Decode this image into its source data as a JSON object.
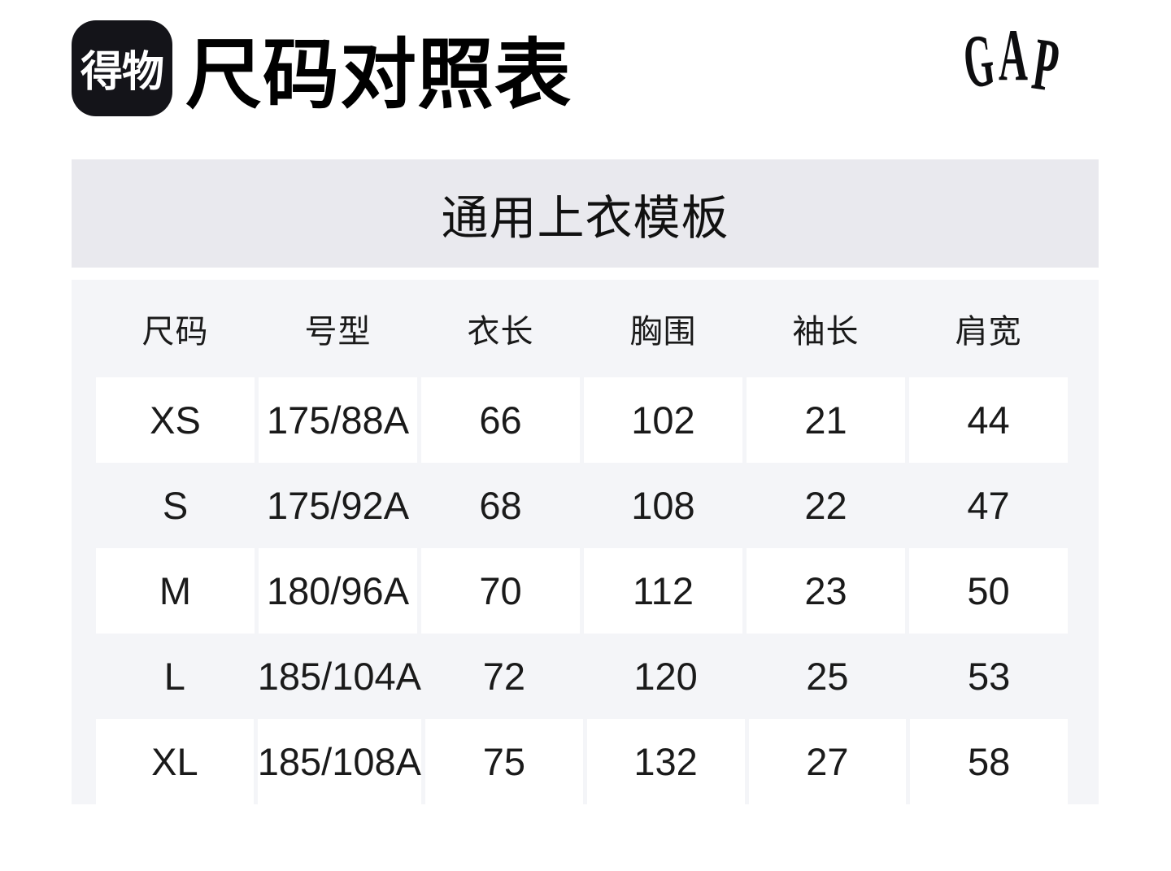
{
  "page": {
    "title": "尺码对照表"
  },
  "header": {
    "logo_text": "得物",
    "brand": "GAP",
    "brand_letters": [
      "G",
      "A",
      "P"
    ]
  },
  "banner": {
    "title": "通用上衣模板"
  },
  "table": {
    "columns": [
      "尺码",
      "号型",
      "衣长",
      "胸围",
      "袖长",
      "肩宽"
    ],
    "rows": [
      [
        "XS",
        "175/88A",
        "66",
        "102",
        "21",
        "44"
      ],
      [
        "S",
        "175/92A",
        "68",
        "108",
        "22",
        "47"
      ],
      [
        "M",
        "180/96A",
        "70",
        "112",
        "23",
        "50"
      ],
      [
        "L",
        "185/104A",
        "72",
        "120",
        "25",
        "53"
      ],
      [
        "XL",
        "185/108A",
        "75",
        "132",
        "27",
        "58"
      ]
    ]
  },
  "colors": {
    "banner_bg": "#e9e9ee",
    "table_bg": "#f4f5f8",
    "row_cell_bg": "#ffffff",
    "logo_bg": "#141419",
    "text": "#1a1a1a"
  }
}
